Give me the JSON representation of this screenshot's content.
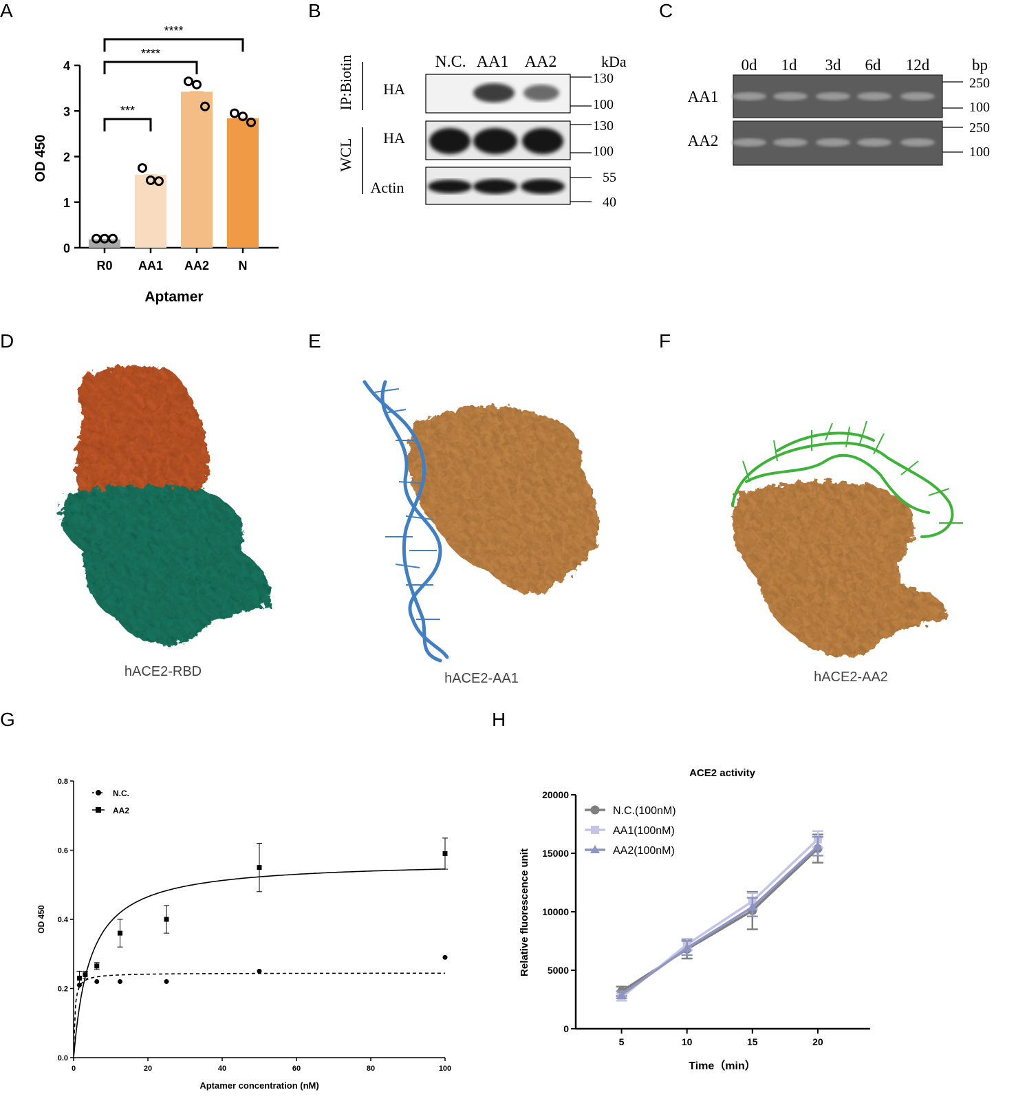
{
  "panel_labels": [
    "A",
    "B",
    "C",
    "D",
    "E",
    "F",
    "G",
    "H"
  ],
  "chart_data": [
    {
      "id": "A",
      "type": "bar",
      "categories": [
        "R0",
        "AA1",
        "AA2",
        "N"
      ],
      "values": [
        0.18,
        1.6,
        3.42,
        2.84
      ],
      "points": [
        [
          0.2,
          0.2,
          0.2
        ],
        [
          1.75,
          1.48,
          1.46
        ],
        [
          3.65,
          3.58,
          3.1
        ],
        [
          2.95,
          2.88,
          2.75
        ]
      ],
      "colors": [
        "#a8a8a8",
        "#f9dcbf",
        "#f4bd85",
        "#f09a45"
      ],
      "xlabel": "Aptamer",
      "ylabel": "OD 450",
      "ylim": [
        0,
        4
      ],
      "yticks": [
        "0",
        "1",
        "2",
        "3",
        "4"
      ],
      "significance": [
        {
          "from": "R0",
          "to": "AA1",
          "label": "***"
        },
        {
          "from": "R0",
          "to": "AA2",
          "label": "****"
        },
        {
          "from": "R0",
          "to": "N",
          "label": "****"
        }
      ]
    },
    {
      "id": "G",
      "type": "scatter",
      "xlabel": "Aptamer concentration (nM)",
      "ylabel": "OD 450",
      "xlim": [
        0,
        100
      ],
      "ylim": [
        0,
        0.8
      ],
      "xticks": [
        "0",
        "20",
        "40",
        "60",
        "80",
        "100"
      ],
      "yticks": [
        "0.0",
        "0.2",
        "0.4",
        "0.6",
        "0.8"
      ],
      "series": [
        {
          "name": "N.C.",
          "marker": "circle",
          "line": "dashed",
          "x": [
            1.56,
            3.13,
            6.25,
            12.5,
            25,
            50,
            100
          ],
          "y": [
            0.21,
            0.24,
            0.22,
            0.22,
            0.22,
            0.25,
            0.29
          ],
          "fit": {
            "bmax": 0.245,
            "kd": 0.3
          }
        },
        {
          "name": "AA2",
          "marker": "square",
          "line": "solid",
          "x": [
            1.56,
            3.13,
            6.25,
            12.5,
            25,
            50,
            100
          ],
          "y": [
            0.23,
            0.24,
            0.265,
            0.36,
            0.4,
            0.55,
            0.59
          ],
          "err": [
            0.02,
            0.01,
            0.01,
            0.04,
            0.04,
            0.07,
            0.045
          ],
          "fit": {
            "bmax": 0.57,
            "kd": 4.5
          }
        }
      ]
    },
    {
      "id": "H",
      "type": "line",
      "title": "ACE2 activity",
      "xlabel": "Time（min）",
      "ylabel": "Relative fluorescence unit",
      "x": [
        5,
        10,
        15,
        20
      ],
      "xticks": [
        "5",
        "10",
        "15",
        "20"
      ],
      "ylim": [
        0,
        20000
      ],
      "yticks": [
        "0",
        "5000",
        "10000",
        "15000",
        "20000"
      ],
      "series": [
        {
          "name": "N.C.(100nM)",
          "marker": "circle",
          "color": "#7f7f7f",
          "values": [
            3200,
            6800,
            10100,
            15400
          ],
          "err": [
            400,
            800,
            1600,
            1200
          ]
        },
        {
          "name": "AA1(100nM)",
          "marker": "square",
          "color": "#c4c4e6",
          "values": [
            2700,
            7200,
            10900,
            16200
          ],
          "err": [
            300,
            500,
            700,
            700
          ]
        },
        {
          "name": "AA2(100nM)",
          "marker": "triangle",
          "color": "#8f95c2",
          "values": [
            2900,
            6900,
            10400,
            15600
          ],
          "err": [
            300,
            600,
            800,
            800
          ]
        }
      ]
    }
  ],
  "blot": {
    "columns": [
      "N.C.",
      "AA1",
      "AA2"
    ],
    "kda_label": "kDa",
    "group_ip": "IP:Biotin",
    "group_wcl": "WCL",
    "rows": [
      {
        "label": "HA",
        "markers": [
          "130",
          "100"
        ]
      },
      {
        "label": "HA",
        "markers": [
          "130",
          "100"
        ]
      },
      {
        "label": "Actin",
        "markers": [
          "55",
          "40"
        ]
      }
    ]
  },
  "gel": {
    "columns": [
      "0d",
      "1d",
      "3d",
      "6d",
      "12d"
    ],
    "bp_label": "bp",
    "rows": [
      {
        "label": "AA1",
        "markers": [
          "250",
          "100"
        ]
      },
      {
        "label": "AA2",
        "markers": [
          "250",
          "100"
        ]
      }
    ]
  },
  "structures": [
    {
      "caption": "hACE2-RBD",
      "colors": [
        "#c75a2a",
        "#1f7a63"
      ]
    },
    {
      "caption": "hACE2-AA1",
      "colors": [
        "#c98949",
        "#3f7fc2"
      ]
    },
    {
      "caption": "hACE2-AA2",
      "colors": [
        "#c98949",
        "#3db33a"
      ]
    }
  ]
}
